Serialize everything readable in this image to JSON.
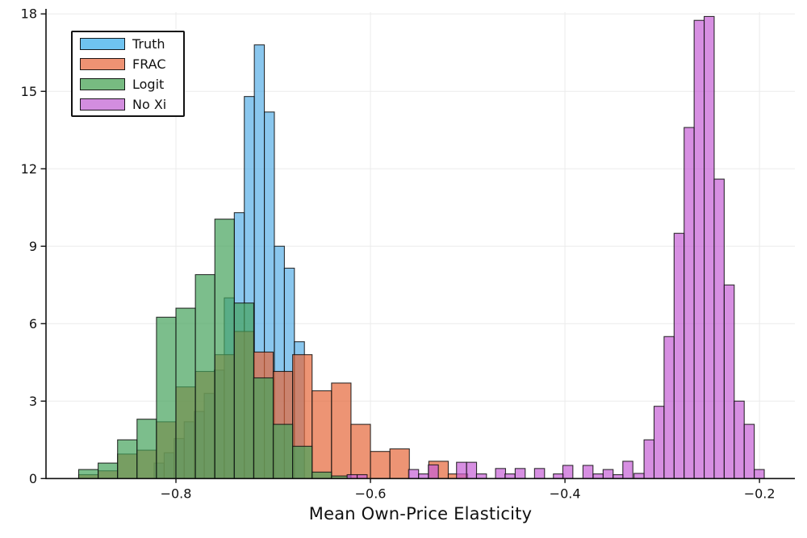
{
  "figure": {
    "xlabel": "Mean Own-Price Elasticity",
    "background": "#ffffff",
    "grid_color": "#ebebeb",
    "axis_color": "#111111",
    "xlim": [
      -0.9336,
      -0.1636
    ],
    "ylim": [
      0,
      18.07
    ],
    "x_ticks": {
      "values": [
        -0.8,
        -0.6,
        -0.4,
        -0.2
      ],
      "labels": [
        "−0.8",
        "−0.6",
        "−0.4",
        "−0.2"
      ]
    },
    "y_ticks": {
      "values": [
        0,
        3,
        6,
        9,
        12,
        15,
        18
      ],
      "labels": [
        "0",
        "3",
        "6",
        "9",
        "12",
        "15",
        "18"
      ]
    }
  },
  "legend": {
    "items": [
      {
        "label": "Truth",
        "color": "#6FC3F0"
      },
      {
        "label": "FRAC",
        "color": "#EE9273"
      },
      {
        "label": "Logit",
        "color": "#77BB81"
      },
      {
        "label": "No Xi",
        "color": "#D38DDF"
      }
    ]
  },
  "chart_data": {
    "type": "bar",
    "subtype": "overlaid-histograms",
    "title": "",
    "xlabel": "Mean Own-Price Elasticity",
    "ylabel": "",
    "xlim": [
      -0.9336,
      -0.1636
    ],
    "ylim": [
      0,
      18.07
    ],
    "grid": true,
    "legend_position": "upper-left",
    "alpha": 0.7,
    "bar_stroke": "rgba(15,15,15,0.85)",
    "series": [
      {
        "name": "Truth",
        "color": "#58AFE7",
        "bin_width": 0.0103,
        "bars": [
          [
            -0.8224,
            0.6
          ],
          [
            -0.8121,
            1.0
          ],
          [
            -0.8018,
            1.55
          ],
          [
            -0.7915,
            2.2
          ],
          [
            -0.7812,
            2.6
          ],
          [
            -0.7709,
            3.3
          ],
          [
            -0.7606,
            4.2
          ],
          [
            -0.7503,
            7.0
          ],
          [
            -0.74,
            10.3
          ],
          [
            -0.7297,
            14.8
          ],
          [
            -0.7194,
            16.8
          ],
          [
            -0.7091,
            14.2
          ],
          [
            -0.6988,
            9.0
          ],
          [
            -0.6885,
            8.15
          ],
          [
            -0.6782,
            5.3
          ]
        ]
      },
      {
        "name": "FRAC",
        "color": "#E66639",
        "bin_width": 0.02,
        "bars": [
          [
            -0.9,
            0.15
          ],
          [
            -0.88,
            0.3
          ],
          [
            -0.86,
            0.95
          ],
          [
            -0.84,
            1.1
          ],
          [
            -0.82,
            2.2
          ],
          [
            -0.8,
            3.55
          ],
          [
            -0.78,
            4.15
          ],
          [
            -0.76,
            4.8
          ],
          [
            -0.74,
            5.7
          ],
          [
            -0.72,
            4.9
          ],
          [
            -0.7,
            4.15
          ],
          [
            -0.68,
            4.8
          ],
          [
            -0.66,
            3.4
          ],
          [
            -0.64,
            3.7
          ],
          [
            -0.62,
            2.1
          ],
          [
            -0.6,
            1.05
          ],
          [
            -0.58,
            1.15
          ],
          [
            -0.54,
            0.67
          ],
          [
            -0.52,
            0.18
          ]
        ]
      },
      {
        "name": "Logit",
        "color": "#44A25B",
        "bin_width": 0.02,
        "bars": [
          [
            -0.9,
            0.35
          ],
          [
            -0.88,
            0.6
          ],
          [
            -0.86,
            1.5
          ],
          [
            -0.84,
            2.3
          ],
          [
            -0.82,
            6.25
          ],
          [
            -0.8,
            6.6
          ],
          [
            -0.78,
            7.9
          ],
          [
            -0.76,
            10.05
          ],
          [
            -0.74,
            6.8
          ],
          [
            -0.72,
            3.9
          ],
          [
            -0.7,
            2.1
          ],
          [
            -0.68,
            1.25
          ],
          [
            -0.66,
            0.25
          ],
          [
            -0.64,
            0.1
          ]
        ]
      },
      {
        "name": "No Xi",
        "color": "#C65FD6",
        "bin_width": 0.0103,
        "bars": [
          [
            -0.624,
            0.15
          ],
          [
            -0.6137,
            0.15
          ],
          [
            -0.5608,
            0.35
          ],
          [
            -0.5505,
            0.18
          ],
          [
            -0.5405,
            0.53
          ],
          [
            -0.5115,
            0.63
          ],
          [
            -0.5012,
            0.63
          ],
          [
            -0.491,
            0.18
          ],
          [
            -0.4714,
            0.39
          ],
          [
            -0.4617,
            0.18
          ],
          [
            -0.4512,
            0.39
          ],
          [
            -0.4313,
            0.39
          ],
          [
            -0.4119,
            0.18
          ],
          [
            -0.4022,
            0.51
          ],
          [
            -0.3815,
            0.51
          ],
          [
            -0.371,
            0.18
          ],
          [
            -0.3608,
            0.35
          ],
          [
            -0.3505,
            0.15
          ],
          [
            -0.3405,
            0.67
          ],
          [
            -0.329,
            0.2
          ],
          [
            -0.3187,
            1.5
          ],
          [
            -0.3084,
            2.8
          ],
          [
            -0.2981,
            5.5
          ],
          [
            -0.2878,
            9.5
          ],
          [
            -0.2775,
            13.6
          ],
          [
            -0.2672,
            17.75
          ],
          [
            -0.2569,
            17.9
          ],
          [
            -0.2466,
            11.6
          ],
          [
            -0.2363,
            7.5
          ],
          [
            -0.226,
            3.0
          ],
          [
            -0.2157,
            2.1
          ],
          [
            -0.2054,
            0.35
          ]
        ]
      }
    ]
  }
}
